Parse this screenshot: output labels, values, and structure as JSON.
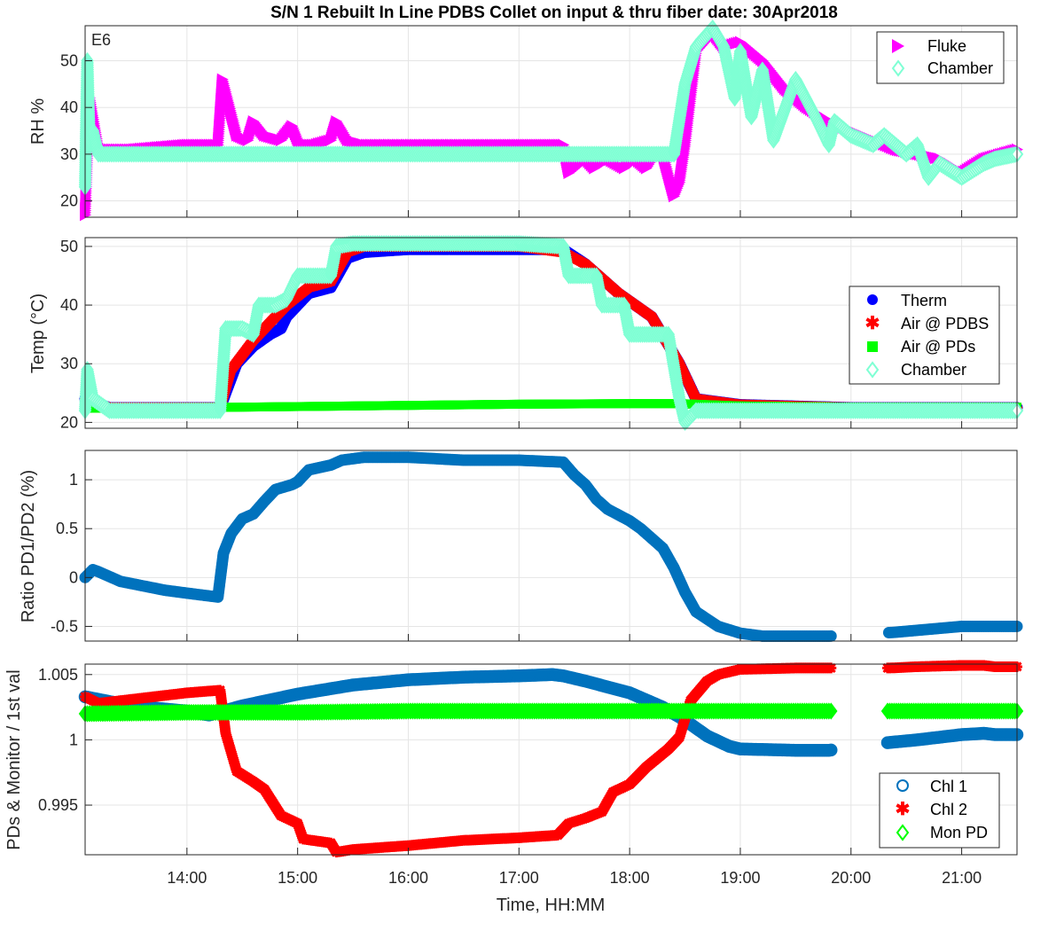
{
  "figure": {
    "title": "S/N 1 Rebuilt In Line PDBS Collet on input & thru fiber date: 30Apr2018",
    "xlabel": "Time, HH:MM",
    "xticks": [
      "14:00",
      "15:00",
      "16:00",
      "17:00",
      "18:00",
      "19:00",
      "20:00",
      "21:00"
    ],
    "colors": {
      "fluke": "#ff00ff",
      "chamber": "#7fffd4",
      "therm": "#0000ff",
      "air_pdbs": "#ff0000",
      "air_pds": "#00ff00",
      "chl1": "#0072bd",
      "chl2": "#ff0000",
      "mon_pd": "#00ff00"
    }
  },
  "chart_data": [
    {
      "type": "scatter",
      "id": "rh",
      "ylabel": "RH %",
      "annotation": "E6",
      "yticks": [
        "20",
        "30",
        "40",
        "50"
      ],
      "ylim": [
        16.5,
        57.5
      ],
      "xlim": [
        13.08,
        21.5
      ],
      "legend_position": "top-right",
      "series": [
        {
          "name": "Fluke",
          "marker": "triangle-right",
          "color": "#ff00ff",
          "x": [
            13.08,
            13.1,
            13.12,
            13.2,
            13.5,
            14.0,
            14.28,
            14.32,
            14.45,
            14.55,
            14.6,
            14.7,
            14.85,
            14.95,
            15.0,
            15.05,
            15.15,
            15.3,
            15.35,
            15.45,
            15.6,
            16.0,
            17.0,
            17.4,
            17.45,
            17.6,
            17.68,
            17.8,
            17.95,
            18.05,
            18.15,
            18.2,
            18.3,
            18.4,
            18.45,
            18.5,
            18.6,
            18.75,
            18.85,
            19.0,
            19.2,
            19.4,
            19.6,
            19.8,
            20.0,
            20.2,
            20.4,
            20.6,
            20.8,
            21.0,
            21.2,
            21.5
          ],
          "y": [
            17,
            31,
            42,
            31,
            31,
            32,
            32,
            46,
            34,
            33,
            37,
            34,
            33,
            36,
            33,
            32,
            32,
            33,
            37,
            33,
            32,
            32,
            32,
            32,
            26,
            29,
            27,
            29,
            27,
            29,
            27,
            29,
            30,
            21,
            24,
            32,
            52,
            56,
            53,
            54,
            50,
            44,
            40,
            37,
            35,
            33,
            31,
            30,
            29,
            26,
            29,
            31
          ]
        },
        {
          "name": "Chamber",
          "marker": "diamond",
          "color": "#7fffd4",
          "x": [
            13.08,
            13.1,
            13.12,
            13.15,
            13.2,
            13.5,
            14.0,
            15.0,
            16.0,
            17.0,
            18.0,
            18.4,
            18.5,
            18.6,
            18.75,
            18.85,
            18.95,
            19.0,
            19.1,
            19.2,
            19.3,
            19.5,
            19.7,
            19.8,
            19.85,
            19.9,
            20.0,
            20.2,
            20.3,
            20.5,
            20.6,
            20.7,
            20.8,
            21.0,
            21.2,
            21.3,
            21.5
          ],
          "y": [
            23,
            50,
            33,
            35,
            30,
            30,
            30,
            30,
            30,
            30,
            30,
            30,
            45,
            53,
            57,
            53,
            42,
            52,
            38,
            48,
            33,
            46,
            37,
            32,
            37,
            36,
            34,
            32,
            34,
            30,
            32,
            25,
            28,
            25,
            28,
            29,
            30
          ]
        }
      ]
    },
    {
      "type": "scatter",
      "id": "temp",
      "ylabel": "Temp (°C)",
      "yticks": [
        "20",
        "30",
        "40",
        "50"
      ],
      "ylim": [
        19.0,
        51.5
      ],
      "xlim": [
        13.08,
        21.5
      ],
      "legend_position": "right",
      "series": [
        {
          "name": "Therm",
          "marker": "circle",
          "color": "#0000ff",
          "x": [
            13.08,
            13.3,
            14.0,
            14.3,
            14.45,
            14.6,
            14.75,
            14.85,
            14.9,
            15.0,
            15.1,
            15.3,
            15.45,
            15.6,
            16.0,
            17.0,
            17.4,
            17.6,
            17.9,
            18.2,
            18.45,
            18.6,
            19.0,
            20.0,
            21.0,
            21.5
          ],
          "y": [
            24,
            22.5,
            22.5,
            22.5,
            30,
            33,
            35,
            36,
            38,
            40,
            42,
            43,
            48,
            49,
            49.5,
            49.5,
            49.5,
            47,
            42,
            38,
            30,
            24,
            23,
            22.5,
            22.5,
            22.5
          ]
        },
        {
          "name": "Air @ PDBS",
          "marker": "asterisk",
          "color": "#ff0000",
          "x": [
            13.08,
            13.3,
            14.0,
            14.3,
            14.4,
            14.6,
            14.75,
            14.9,
            15.1,
            15.3,
            15.45,
            15.6,
            16.0,
            17.0,
            17.4,
            17.6,
            17.9,
            18.2,
            18.45,
            18.6,
            19.0,
            20.0,
            21.0,
            21.5
          ],
          "y": [
            24,
            22.5,
            22.5,
            22.5,
            29,
            34,
            37,
            40,
            43,
            44,
            49,
            50,
            50,
            50,
            49,
            47,
            42,
            38,
            30,
            24,
            23,
            22.5,
            22.5,
            22.5
          ]
        },
        {
          "name": "Air @ PDs",
          "marker": "square",
          "color": "#00ff00",
          "x": [
            13.08,
            14.0,
            15.0,
            16.0,
            17.0,
            18.0,
            18.45,
            19.0,
            20.0,
            21.0,
            21.5
          ],
          "y": [
            22.4,
            22.5,
            22.7,
            22.9,
            23.1,
            23.2,
            23.2,
            22.8,
            22.6,
            22.6,
            22.6
          ]
        },
        {
          "name": "Chamber",
          "marker": "diamond",
          "color": "#7fffd4",
          "x": [
            13.08,
            13.1,
            13.15,
            13.3,
            14.0,
            14.3,
            14.35,
            14.5,
            14.6,
            14.65,
            14.8,
            14.9,
            15.0,
            15.1,
            15.3,
            15.35,
            15.5,
            17.0,
            17.4,
            17.45,
            17.6,
            17.7,
            17.75,
            17.95,
            18.0,
            18.35,
            18.45,
            18.5,
            18.6,
            19.0,
            20.0,
            21.0,
            21.5
          ],
          "y": [
            22,
            29,
            24,
            22,
            22,
            22,
            36,
            36,
            35,
            40,
            40,
            41,
            45,
            45,
            45,
            50,
            50.5,
            50.5,
            50,
            45,
            45,
            45,
            40,
            40,
            35,
            35,
            24,
            20,
            22,
            22,
            22,
            22,
            22
          ]
        }
      ]
    },
    {
      "type": "scatter",
      "id": "ratio",
      "ylabel": "Ratio PD1/PD2 (%)",
      "yticks": [
        "-0.5",
        "0",
        "0.5",
        "1"
      ],
      "ylim": [
        -0.65,
        1.3
      ],
      "xlim": [
        13.08,
        21.5
      ],
      "series": [
        {
          "name": "Ratio",
          "marker": "circle",
          "color": "#0072bd",
          "x": [
            13.08,
            13.15,
            13.2,
            13.4,
            13.8,
            14.0,
            14.28,
            14.33,
            14.4,
            14.5,
            14.6,
            14.7,
            14.8,
            14.95,
            15.0,
            15.1,
            15.3,
            15.4,
            15.6,
            16.0,
            16.5,
            17.0,
            17.4,
            17.5,
            17.6,
            17.7,
            17.8,
            18.0,
            18.1,
            18.3,
            18.4,
            18.5,
            18.6,
            18.8,
            19.0,
            19.2,
            19.5,
            19.8,
            20.4,
            20.6,
            20.8,
            21.0,
            21.2,
            21.3,
            21.5
          ],
          "y": [
            0.0,
            0.08,
            0.06,
            -0.04,
            -0.13,
            -0.16,
            -0.2,
            0.25,
            0.45,
            0.6,
            0.65,
            0.78,
            0.9,
            0.95,
            0.98,
            1.1,
            1.15,
            1.2,
            1.23,
            1.23,
            1.2,
            1.2,
            1.18,
            1.05,
            0.95,
            0.8,
            0.7,
            0.58,
            0.5,
            0.3,
            0.1,
            -0.15,
            -0.35,
            -0.5,
            -0.57,
            -0.6,
            -0.6,
            -0.6,
            -0.56,
            -0.54,
            -0.52,
            -0.5,
            -0.5,
            -0.5,
            -0.5
          ]
        }
      ]
    },
    {
      "type": "scatter",
      "id": "pds",
      "ylabel": "PDs & Monitor / 1st val",
      "yticks": [
        "0.995",
        "1",
        "1.005"
      ],
      "ylim": [
        0.9912,
        1.0058
      ],
      "xlim": [
        13.08,
        21.5
      ],
      "legend_position": "bottom-right",
      "series": [
        {
          "name": "Chl 1",
          "marker": "circle-open",
          "color": "#0072bd",
          "x": [
            13.08,
            13.5,
            14.0,
            14.2,
            14.5,
            15.0,
            15.5,
            16.0,
            16.5,
            17.0,
            17.3,
            17.4,
            17.6,
            18.0,
            18.3,
            18.5,
            18.7,
            18.9,
            19.0,
            19.5,
            19.8,
            20.35,
            20.6,
            20.8,
            21.0,
            21.2,
            21.3,
            21.5
          ],
          "y": [
            1.0033,
            1.0026,
            1.0022,
            1.0019,
            1.0026,
            1.0035,
            1.0042,
            1.0046,
            1.0048,
            1.0049,
            1.005,
            1.0049,
            1.0045,
            1.0036,
            1.0025,
            1.0015,
            1.0003,
            0.9995,
            0.9993,
            0.9992,
            0.9992,
            0.9998,
            1.0,
            1.0002,
            1.0004,
            1.0005,
            1.0004,
            1.0004
          ]
        },
        {
          "name": "Chl 2",
          "marker": "asterisk",
          "color": "#ff0000",
          "x": [
            13.08,
            13.2,
            13.5,
            14.0,
            14.3,
            14.35,
            14.45,
            14.6,
            14.7,
            14.85,
            15.0,
            15.05,
            15.3,
            15.35,
            15.5,
            16.0,
            16.5,
            17.0,
            17.35,
            17.45,
            17.6,
            17.75,
            17.85,
            18.0,
            18.15,
            18.35,
            18.45,
            18.55,
            18.7,
            18.8,
            19.0,
            19.5,
            19.8,
            20.35,
            20.6,
            21.0,
            21.2,
            21.3,
            21.5
          ],
          "y": [
            1.0033,
            1.0028,
            1.0031,
            1.0036,
            1.0038,
            1.0005,
            0.9976,
            0.9968,
            0.9962,
            0.9942,
            0.9936,
            0.9924,
            0.9921,
            0.9914,
            0.9916,
            0.9919,
            0.9923,
            0.9925,
            0.9927,
            0.9936,
            0.994,
            0.9945,
            0.996,
            0.9966,
            0.9979,
            0.9993,
            1.0002,
            1.003,
            1.0045,
            1.005,
            1.0054,
            1.0055,
            1.0055,
            1.0055,
            1.0056,
            1.0057,
            1.0057,
            1.0056,
            1.0056
          ]
        },
        {
          "name": "Mon PD",
          "marker": "diamond-open",
          "color": "#00ff00",
          "x": [
            13.08,
            14.0,
            15.0,
            16.0,
            17.0,
            18.0,
            19.0,
            19.8,
            20.35,
            21.0,
            21.2,
            21.3,
            21.5
          ],
          "y": [
            1.002,
            1.0021,
            1.0021,
            1.0022,
            1.0022,
            1.0022,
            1.0022,
            1.0022,
            1.0022,
            1.0022,
            1.0022,
            1.0022,
            1.0022
          ]
        }
      ]
    }
  ]
}
